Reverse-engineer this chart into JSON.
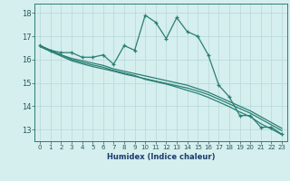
{
  "title": "",
  "xlabel": "Humidex (Indice chaleur)",
  "x": [
    0,
    1,
    2,
    3,
    4,
    5,
    6,
    7,
    8,
    9,
    10,
    11,
    12,
    13,
    14,
    15,
    16,
    17,
    18,
    19,
    20,
    21,
    22,
    23
  ],
  "line1": [
    16.6,
    16.4,
    16.3,
    16.3,
    16.1,
    16.1,
    16.2,
    15.8,
    16.6,
    16.4,
    17.9,
    17.6,
    16.9,
    17.8,
    17.2,
    17.0,
    16.2,
    14.9,
    14.4,
    13.6,
    13.6,
    13.1,
    13.1,
    12.8
  ],
  "line2": [
    16.6,
    16.35,
    16.2,
    16.05,
    15.95,
    15.85,
    15.75,
    15.6,
    15.5,
    15.4,
    15.3,
    15.2,
    15.1,
    15.0,
    14.9,
    14.75,
    14.6,
    14.4,
    14.2,
    14.0,
    13.8,
    13.55,
    13.3,
    13.05
  ],
  "line3": [
    16.55,
    16.35,
    16.15,
    15.95,
    15.82,
    15.7,
    15.6,
    15.5,
    15.38,
    15.28,
    15.18,
    15.08,
    14.98,
    14.88,
    14.78,
    14.65,
    14.5,
    14.3,
    14.1,
    13.9,
    13.7,
    13.45,
    13.2,
    12.95
  ],
  "line4": [
    16.6,
    16.4,
    16.2,
    16.0,
    15.88,
    15.77,
    15.67,
    15.53,
    15.42,
    15.32,
    15.15,
    15.05,
    14.95,
    14.82,
    14.68,
    14.55,
    14.38,
    14.18,
    13.98,
    13.75,
    13.55,
    13.25,
    13.02,
    12.78
  ],
  "line_color": "#2a7f72",
  "bg_color": "#d5eeee",
  "grid_color": "#b8d8d8",
  "ylim": [
    12.5,
    18.4
  ],
  "yticks": [
    13,
    14,
    15,
    16,
    17,
    18
  ],
  "tick_label_color": "#2a5858",
  "xlabel_color": "#1a3a6e",
  "spine_color": "#2a7f72"
}
